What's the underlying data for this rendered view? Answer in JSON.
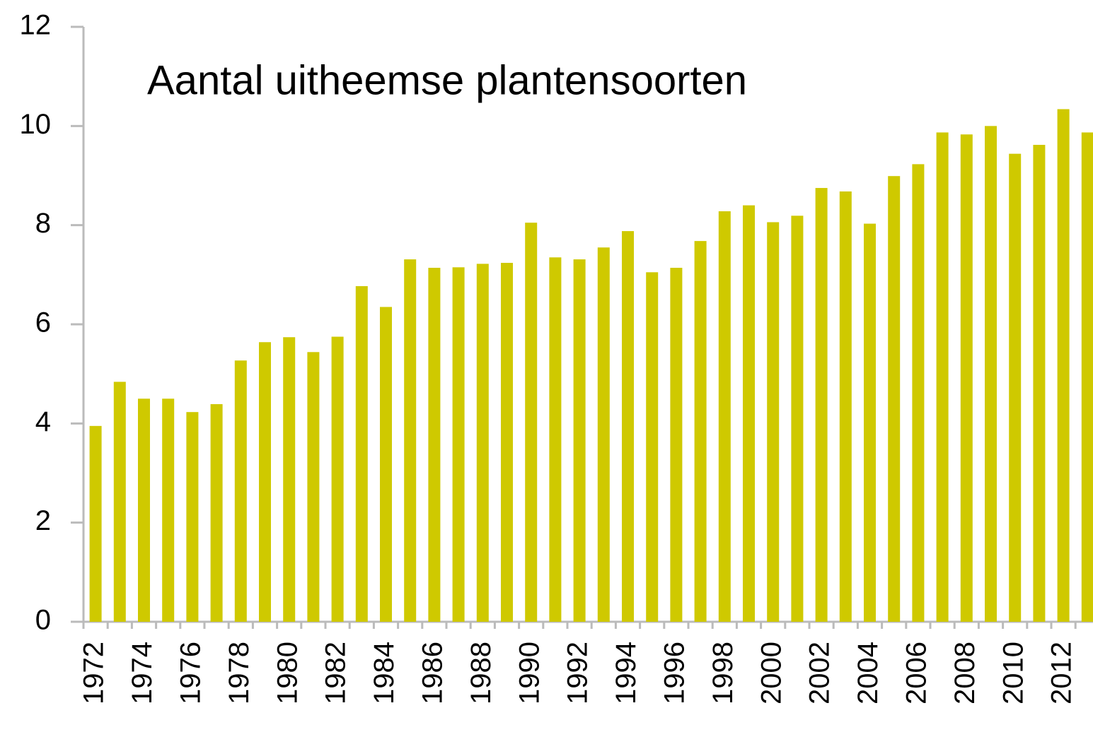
{
  "chart_data": {
    "type": "bar",
    "title": "Aantal uitheemse plantensoorten",
    "categories": [
      "1972",
      null,
      "1974",
      null,
      "1976",
      null,
      "1978",
      null,
      "1980",
      null,
      "1982",
      null,
      "1984",
      null,
      "1986",
      null,
      "1988",
      null,
      "1990",
      null,
      "1992",
      null,
      "1994",
      null,
      "1996",
      null,
      "1998",
      null,
      "2000",
      null,
      "2002",
      null,
      "2004",
      null,
      "2006",
      null,
      "2008",
      null,
      "2010",
      null,
      "2012",
      null
    ],
    "values": [
      3.95,
      4.84,
      4.5,
      4.5,
      4.23,
      4.39,
      5.27,
      5.64,
      5.74,
      5.44,
      5.75,
      6.77,
      6.35,
      7.31,
      7.14,
      7.15,
      7.22,
      7.24,
      8.05,
      7.35,
      7.31,
      7.55,
      7.88,
      7.05,
      7.14,
      7.68,
      8.28,
      8.4,
      8.06,
      8.19,
      8.75,
      8.68,
      8.03,
      8.99,
      9.23,
      9.87,
      9.83,
      10.0,
      9.44,
      9.62,
      10.34,
      9.87
    ],
    "color": "#cfc900",
    "ylim": [
      0,
      12
    ],
    "yticks": [
      0,
      2,
      4,
      6,
      8,
      10,
      12
    ],
    "grid": false
  }
}
